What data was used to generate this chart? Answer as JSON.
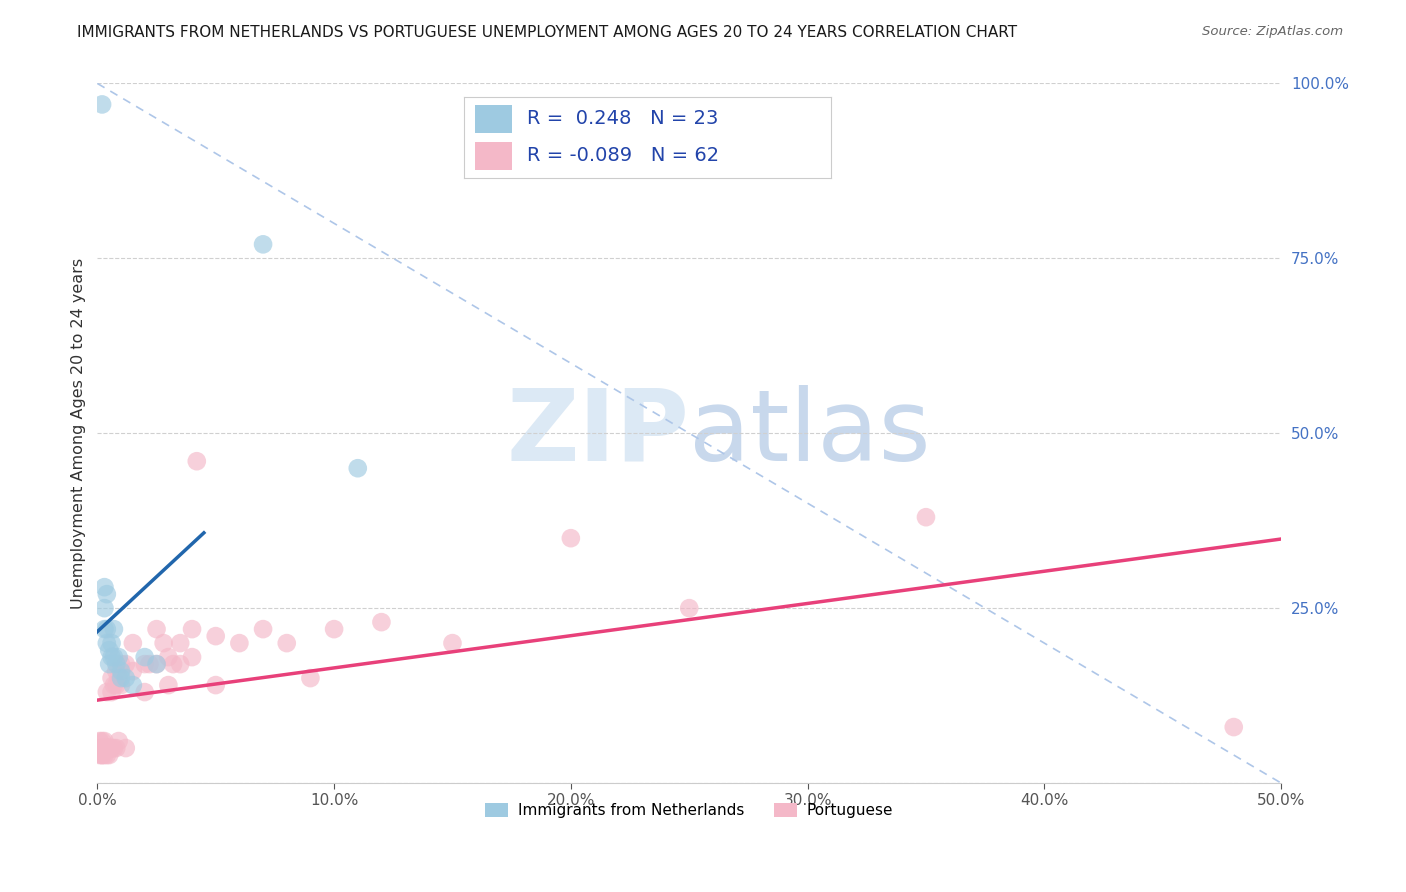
{
  "title": "IMMIGRANTS FROM NETHERLANDS VS PORTUGUESE UNEMPLOYMENT AMONG AGES 20 TO 24 YEARS CORRELATION CHART",
  "source": "Source: ZipAtlas.com",
  "ylabel": "Unemployment Among Ages 20 to 24 years",
  "legend_label1": "Immigrants from Netherlands",
  "legend_label2": "Portuguese",
  "R1": 0.248,
  "N1": 23,
  "R2": -0.089,
  "N2": 62,
  "xlim": [
    0.0,
    0.5
  ],
  "ylim": [
    0.0,
    1.0
  ],
  "xticks": [
    0.0,
    0.1,
    0.2,
    0.3,
    0.4,
    0.5
  ],
  "xtick_labels": [
    "0.0%",
    "10.0%",
    "20.0%",
    "30.0%",
    "40.0%",
    "50.0%"
  ],
  "yticks": [
    0.0,
    0.25,
    0.5,
    0.75,
    1.0
  ],
  "ytick_labels": [
    "",
    "25.0%",
    "50.0%",
    "75.0%",
    "100.0%"
  ],
  "color_netherlands": "#9ecae1",
  "color_portuguese": "#f4b8c8",
  "color_line_netherlands": "#2166ac",
  "color_line_portuguese": "#e8407a",
  "color_diagonal": "#aec6e8",
  "background": "#ffffff",
  "netherlands_x": [
    0.002,
    0.003,
    0.003,
    0.003,
    0.004,
    0.004,
    0.004,
    0.005,
    0.005,
    0.006,
    0.006,
    0.007,
    0.007,
    0.008,
    0.009,
    0.01,
    0.01,
    0.012,
    0.015,
    0.02,
    0.025,
    0.07,
    0.11
  ],
  "netherlands_y": [
    0.97,
    0.28,
    0.25,
    0.22,
    0.27,
    0.22,
    0.2,
    0.19,
    0.17,
    0.2,
    0.18,
    0.18,
    0.22,
    0.17,
    0.18,
    0.16,
    0.15,
    0.15,
    0.14,
    0.18,
    0.17,
    0.77,
    0.45
  ],
  "portuguese_x": [
    0.001,
    0.001,
    0.001,
    0.001,
    0.002,
    0.002,
    0.002,
    0.002,
    0.002,
    0.003,
    0.003,
    0.003,
    0.003,
    0.004,
    0.004,
    0.004,
    0.005,
    0.005,
    0.005,
    0.006,
    0.006,
    0.006,
    0.007,
    0.007,
    0.008,
    0.008,
    0.008,
    0.009,
    0.009,
    0.01,
    0.01,
    0.012,
    0.012,
    0.015,
    0.015,
    0.02,
    0.02,
    0.022,
    0.025,
    0.025,
    0.028,
    0.03,
    0.03,
    0.032,
    0.035,
    0.035,
    0.04,
    0.04,
    0.042,
    0.05,
    0.05,
    0.06,
    0.07,
    0.08,
    0.09,
    0.1,
    0.12,
    0.15,
    0.2,
    0.25,
    0.35,
    0.48
  ],
  "portuguese_y": [
    0.05,
    0.04,
    0.06,
    0.05,
    0.05,
    0.04,
    0.06,
    0.05,
    0.04,
    0.05,
    0.04,
    0.05,
    0.06,
    0.05,
    0.13,
    0.04,
    0.05,
    0.04,
    0.05,
    0.15,
    0.13,
    0.05,
    0.14,
    0.05,
    0.16,
    0.14,
    0.05,
    0.15,
    0.06,
    0.17,
    0.14,
    0.17,
    0.05,
    0.16,
    0.2,
    0.17,
    0.13,
    0.17,
    0.22,
    0.17,
    0.2,
    0.18,
    0.14,
    0.17,
    0.2,
    0.17,
    0.22,
    0.18,
    0.46,
    0.21,
    0.14,
    0.2,
    0.22,
    0.2,
    0.15,
    0.22,
    0.23,
    0.2,
    0.35,
    0.25,
    0.38,
    0.08
  ]
}
